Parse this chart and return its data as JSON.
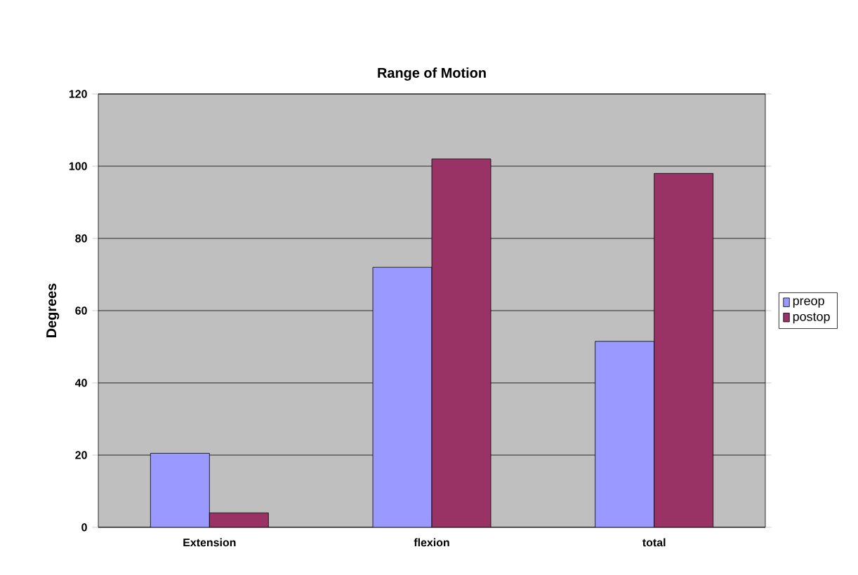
{
  "chart_data": {
    "type": "bar",
    "title": "Range of Motion",
    "ylabel": "Degrees",
    "categories": [
      "Extension",
      "flexion",
      "total"
    ],
    "series": [
      {
        "name": "preop",
        "color": "#9999ff",
        "values": [
          20.5,
          72,
          51.5
        ]
      },
      {
        "name": "postop",
        "color": "#993366",
        "values": [
          4,
          102,
          98
        ]
      }
    ],
    "ylim": [
      0,
      120
    ],
    "yticks": [
      0,
      20,
      40,
      60,
      80,
      100,
      120
    ],
    "grid": "y",
    "legend": "right"
  }
}
